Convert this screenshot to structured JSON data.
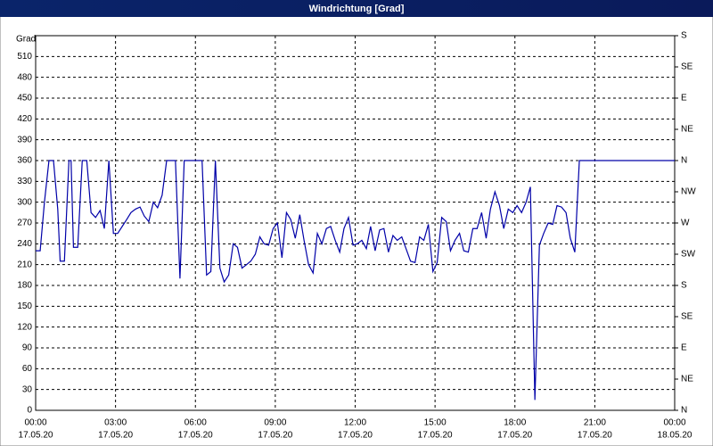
{
  "chart_data": {
    "type": "line",
    "title": "Windrichtung [Grad]",
    "y_label": "Grad",
    "xlim": [
      0,
      24
    ],
    "xticks": [
      {
        "value": 0,
        "label": "00:00",
        "date": "17.05.20"
      },
      {
        "value": 3,
        "label": "03:00",
        "date": "17.05.20"
      },
      {
        "value": 6,
        "label": "06:00",
        "date": "17.05.20"
      },
      {
        "value": 9,
        "label": "09:00",
        "date": "17.05.20"
      },
      {
        "value": 12,
        "label": "12:00",
        "date": "17.05.20"
      },
      {
        "value": 15,
        "label": "15:00",
        "date": "17.05.20"
      },
      {
        "value": 18,
        "label": "18:00",
        "date": "17.05.20"
      },
      {
        "value": 21,
        "label": "21:00",
        "date": "17.05.20"
      },
      {
        "value": 24,
        "label": "00:00",
        "date": "18.05.20"
      }
    ],
    "ylim": [
      0,
      540
    ],
    "yticks": [
      0,
      30,
      60,
      90,
      120,
      150,
      180,
      210,
      240,
      270,
      300,
      330,
      360,
      390,
      420,
      450,
      480,
      510
    ],
    "y2lim": [
      0,
      540
    ],
    "y2ticks": [
      {
        "value": 0,
        "label": "N"
      },
      {
        "value": 45,
        "label": "NE"
      },
      {
        "value": 90,
        "label": "E"
      },
      {
        "value": 135,
        "label": "SE"
      },
      {
        "value": 180,
        "label": "S"
      },
      {
        "value": 225,
        "label": "SW"
      },
      {
        "value": 270,
        "label": "W"
      },
      {
        "value": 315,
        "label": "NW"
      },
      {
        "value": 360,
        "label": "N"
      },
      {
        "value": 405,
        "label": "NE"
      },
      {
        "value": 450,
        "label": "E"
      },
      {
        "value": 495,
        "label": "SE"
      },
      {
        "value": 540,
        "label": "S"
      }
    ],
    "grid": true,
    "color": "#0000a8",
    "x": [
      0.0,
      0.17,
      0.33,
      0.5,
      0.67,
      0.83,
      0.92,
      1.08,
      1.25,
      1.33,
      1.42,
      1.58,
      1.75,
      1.92,
      2.08,
      2.25,
      2.42,
      2.58,
      2.75,
      2.92,
      3.08,
      3.25,
      3.42,
      3.58,
      3.75,
      3.92,
      4.08,
      4.25,
      4.42,
      4.58,
      4.75,
      4.92,
      5.08,
      5.25,
      5.42,
      5.58,
      5.75,
      5.92,
      6.08,
      6.25,
      6.42,
      6.58,
      6.75,
      6.92,
      7.08,
      7.25,
      7.42,
      7.58,
      7.75,
      7.92,
      8.08,
      8.25,
      8.42,
      8.58,
      8.75,
      8.92,
      9.08,
      9.25,
      9.42,
      9.58,
      9.75,
      9.92,
      10.08,
      10.25,
      10.42,
      10.58,
      10.75,
      10.92,
      11.08,
      11.25,
      11.42,
      11.58,
      11.75,
      11.92,
      12.08,
      12.25,
      12.42,
      12.58,
      12.75,
      12.92,
      13.08,
      13.25,
      13.42,
      13.58,
      13.75,
      13.92,
      14.08,
      14.25,
      14.42,
      14.58,
      14.75,
      14.92,
      15.08,
      15.25,
      15.42,
      15.58,
      15.75,
      15.92,
      16.08,
      16.25,
      16.42,
      16.58,
      16.75,
      16.92,
      17.08,
      17.25,
      17.42,
      17.58,
      17.75,
      17.92,
      18.08,
      18.25,
      18.42,
      18.58,
      18.75,
      18.92,
      19.08,
      19.25,
      19.42,
      19.58,
      19.75,
      19.92,
      20.08,
      20.25,
      20.42,
      20.58,
      24
    ],
    "values": [
      230,
      230,
      300,
      360,
      360,
      290,
      215,
      215,
      360,
      360,
      235,
      235,
      360,
      360,
      285,
      278,
      288,
      262,
      360,
      255,
      255,
      265,
      275,
      285,
      290,
      293,
      280,
      272,
      300,
      292,
      310,
      360,
      360,
      360,
      190,
      360,
      360,
      360,
      360,
      360,
      195,
      200,
      360,
      205,
      185,
      195,
      240,
      235,
      205,
      210,
      215,
      225,
      250,
      240,
      238,
      262,
      270,
      220,
      285,
      275,
      248,
      282,
      245,
      210,
      198,
      255,
      240,
      262,
      265,
      245,
      228,
      262,
      278,
      238,
      240,
      245,
      233,
      265,
      230,
      260,
      262,
      228,
      252,
      245,
      250,
      232,
      215,
      213,
      250,
      245,
      268,
      200,
      213,
      278,
      272,
      230,
      245,
      255,
      230,
      228,
      262,
      262,
      285,
      248,
      290,
      315,
      295,
      262,
      290,
      285,
      295,
      285,
      300,
      322,
      15,
      238,
      255,
      270,
      268,
      295,
      293,
      285,
      248,
      228,
      360,
      360,
      360
    ]
  }
}
